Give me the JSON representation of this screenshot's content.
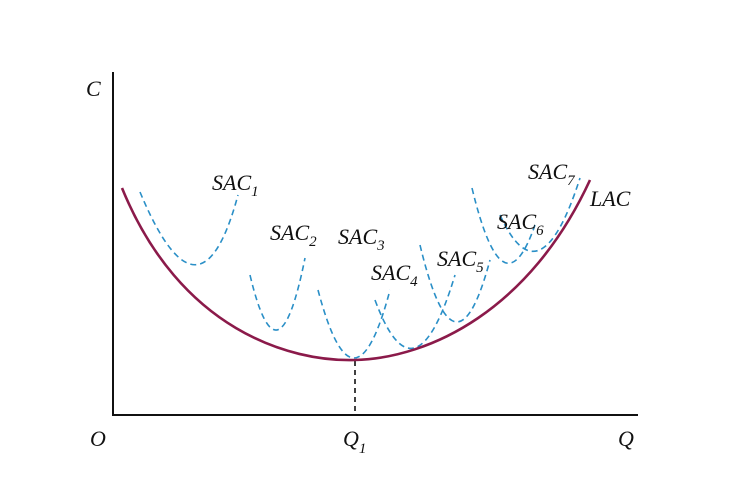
{
  "axes": {
    "y_label": "C",
    "origin": "O",
    "x_label": "Q",
    "q1": {
      "text": "Q",
      "sub": "1"
    }
  },
  "curves": [
    {
      "text": "SAC",
      "sub": "1"
    },
    {
      "text": "SAC",
      "sub": "2"
    },
    {
      "text": "SAC",
      "sub": "3"
    },
    {
      "text": "SAC",
      "sub": "4"
    },
    {
      "text": "SAC",
      "sub": "5"
    },
    {
      "text": "SAC",
      "sub": "6"
    },
    {
      "text": "SAC",
      "sub": "7"
    }
  ],
  "envelope": "LAC"
}
